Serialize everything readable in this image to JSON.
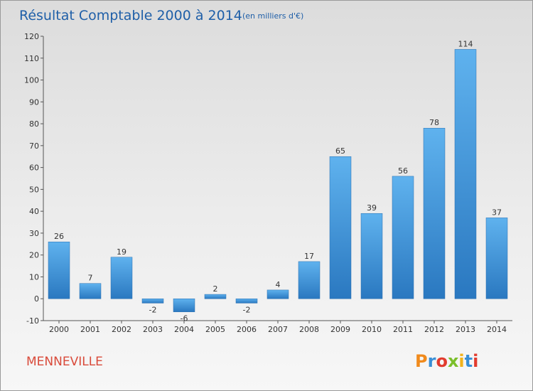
{
  "header": {
    "title": "Résultat Comptable 2000 à 2014",
    "subtitle": "(en milliers d'€)"
  },
  "footer": {
    "city": "MENNEVILLE",
    "brand": "Proxiti",
    "brand_colors": [
      "#f08a1c",
      "#3a8fd6",
      "#e23b2e",
      "#7bbf2a",
      "#f2b31b",
      "#3a8fd6",
      "#e23b2e"
    ]
  },
  "chart_data": {
    "type": "bar",
    "categories": [
      "2000",
      "2001",
      "2002",
      "2003",
      "2004",
      "2005",
      "2006",
      "2007",
      "2008",
      "2009",
      "2010",
      "2011",
      "2012",
      "2013",
      "2014"
    ],
    "values": [
      26,
      7,
      19,
      -2,
      -6,
      2,
      -2,
      4,
      17,
      65,
      39,
      56,
      78,
      114,
      37
    ],
    "ylim": [
      -10,
      120
    ],
    "yticks": [
      -10,
      0,
      10,
      20,
      30,
      40,
      50,
      60,
      70,
      80,
      90,
      100,
      110,
      120
    ],
    "grid": false,
    "bar_color": "#3d8fd8"
  }
}
